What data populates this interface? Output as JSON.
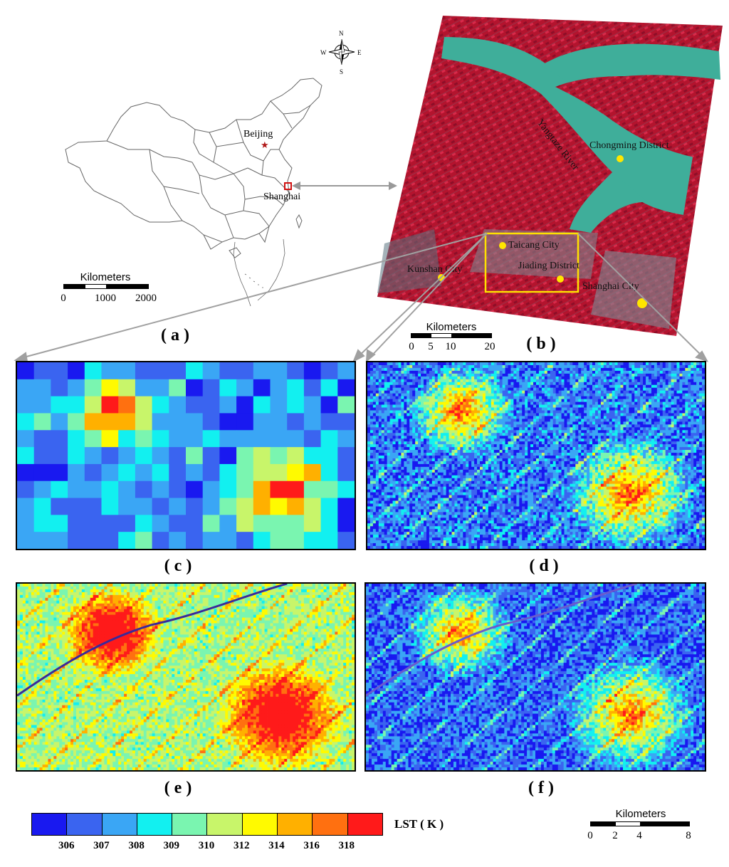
{
  "panel_a": {
    "label": "( a )",
    "cities": [
      {
        "name": "Beijing"
      },
      {
        "name": "Shanghai"
      }
    ],
    "compass": {
      "n": "N",
      "s": "S",
      "e": "E",
      "w": "W"
    },
    "scale": {
      "title": "Kilometers",
      "ticks": [
        "0",
        "1000",
        "2000"
      ]
    }
  },
  "panel_b": {
    "label": "( b )",
    "places": [
      {
        "name": "Chongming District"
      },
      {
        "name": "Yangtaze River"
      },
      {
        "name": "Taicang City"
      },
      {
        "name": "Jiading District"
      },
      {
        "name": "Kunshan City"
      },
      {
        "name": "Shanghai City"
      }
    ],
    "scale": {
      "title": "Kilometers",
      "ticks": [
        "0",
        "5",
        "10",
        "20"
      ]
    }
  },
  "panel_c": {
    "label": "( c )"
  },
  "panel_d": {
    "label": "( d )"
  },
  "panel_e": {
    "label": "( e )"
  },
  "panel_f": {
    "label": "( f )"
  },
  "legend": {
    "unit_label": "LST ( K )",
    "colors": [
      "#1919f0",
      "#3a64f0",
      "#3aa6f5",
      "#12f0f0",
      "#7af5b0",
      "#c8f56a",
      "#fffa00",
      "#ffb000",
      "#ff7010",
      "#ff1a1a"
    ],
    "ticks": [
      "306",
      "307",
      "308",
      "309",
      "310",
      "312",
      "314",
      "316",
      "318"
    ]
  },
  "bottom_scale": {
    "title": "Kilometers",
    "ticks": [
      "0",
      "2",
      "4",
      "8"
    ]
  }
}
